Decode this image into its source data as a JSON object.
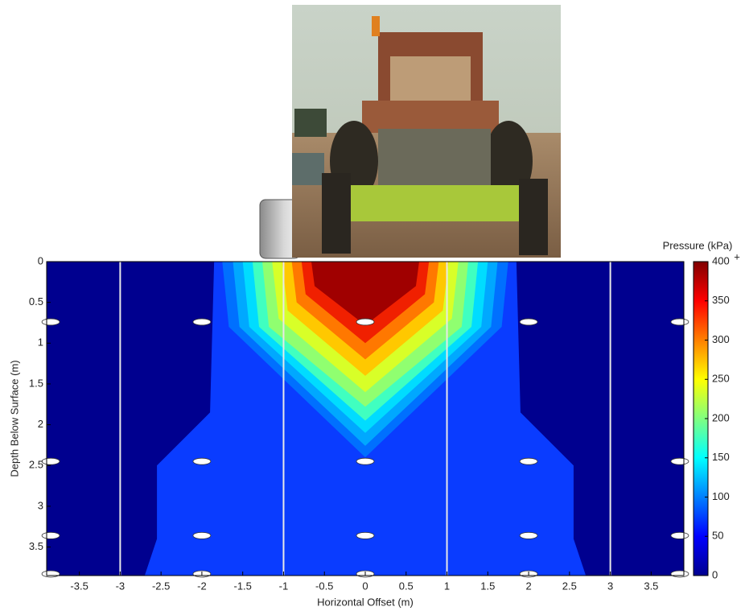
{
  "chart_data": {
    "type": "contour",
    "x_label": "Horizontal Offset (m)",
    "y_label": "Depth Below Surface (m)",
    "xlim": [
      -3.9,
      3.9
    ],
    "ylim": [
      0,
      3.85
    ],
    "y_inverted": true,
    "xticks": [
      -3.5,
      -3,
      -2.5,
      -2,
      -1.5,
      -1,
      -0.5,
      0,
      0.5,
      1,
      1.5,
      2,
      2.5,
      3,
      3.5
    ],
    "yticks": [
      0,
      0.5,
      1,
      1.5,
      2,
      2.5,
      3,
      3.5
    ],
    "background_color": "#00008f",
    "contours": [
      {
        "color": "#0a3cff",
        "x": [
          -1.85,
          1.85,
          1.9,
          2.55,
          2.55,
          2.7,
          -2.7,
          -2.55,
          -2.55,
          -1.9
        ],
        "y": [
          0,
          0,
          1.85,
          2.5,
          3.4,
          3.85,
          3.85,
          3.4,
          2.5,
          1.85
        ]
      },
      {
        "color": "#0070ff",
        "x": [
          -1.75,
          1.75,
          1.67,
          0,
          -1.67
        ],
        "y": [
          0,
          0,
          0.8,
          2.4,
          0.8
        ]
      },
      {
        "color": "#00a8ff",
        "x": [
          -1.62,
          1.62,
          1.54,
          0,
          -1.54
        ],
        "y": [
          0,
          0,
          0.8,
          2.26,
          0.8
        ]
      },
      {
        "color": "#00dcff",
        "x": [
          -1.5,
          1.5,
          1.42,
          0,
          -1.42
        ],
        "y": [
          0,
          0,
          0.8,
          2.1,
          0.8
        ]
      },
      {
        "color": "#40ffc0",
        "x": [
          -1.38,
          1.38,
          1.3,
          0,
          -1.3
        ],
        "y": [
          0,
          0,
          0.8,
          1.95,
          0.8
        ]
      },
      {
        "color": "#90ff70",
        "x": [
          -1.26,
          1.26,
          1.18,
          0,
          -1.18
        ],
        "y": [
          0,
          0,
          0.8,
          1.78,
          0.8
        ]
      },
      {
        "color": "#d8ff28",
        "x": [
          -1.14,
          1.14,
          1.06,
          0,
          -1.06
        ],
        "y": [
          0,
          0,
          0.7,
          1.6,
          0.7
        ]
      },
      {
        "color": "#ffc800",
        "x": [
          -1.02,
          1.02,
          0.95,
          0,
          -0.95
        ],
        "y": [
          0,
          0,
          0.6,
          1.4,
          0.6
        ]
      },
      {
        "color": "#ff7800",
        "x": [
          -0.9,
          0.9,
          0.84,
          0,
          -0.84
        ],
        "y": [
          0,
          0,
          0.5,
          1.2,
          0.5
        ]
      },
      {
        "color": "#f02000",
        "x": [
          -0.78,
          0.78,
          0.73,
          0,
          -0.73
        ],
        "y": [
          0,
          0,
          0.4,
          1.0,
          0.4
        ]
      },
      {
        "color": "#a00000",
        "x": [
          -0.66,
          0.66,
          0.62,
          0,
          -0.62
        ],
        "y": [
          0,
          0,
          0.3,
          0.78,
          0.3
        ]
      }
    ],
    "vlines": [
      -3,
      -1,
      1,
      3
    ],
    "sensors": {
      "x": [
        -3.85,
        -2,
        0,
        2,
        3.85,
        -3.85,
        -2,
        0,
        2,
        3.85,
        -3.85,
        -2,
        0,
        2,
        3.85,
        -3.85,
        -2,
        0,
        2,
        3.85
      ],
      "y": [
        0.74,
        0.74,
        0.74,
        0.74,
        0.74,
        2.45,
        2.45,
        2.45,
        2.45,
        2.45,
        3.36,
        3.36,
        3.36,
        3.36,
        3.36,
        3.83,
        3.83,
        3.83,
        3.83,
        3.83
      ]
    },
    "colorbar_label": "Pressure (kPa)",
    "colorbar_extend_label": "+",
    "clim": [
      0,
      400
    ],
    "cticks": [
      0,
      50,
      100,
      150,
      200,
      250,
      300,
      350,
      400
    ],
    "colormap": [
      "#00008f",
      "#0000ff",
      "#0080ff",
      "#00ffff",
      "#80ff80",
      "#ffff00",
      "#ff8000",
      "#ff0000",
      "#800000"
    ]
  }
}
